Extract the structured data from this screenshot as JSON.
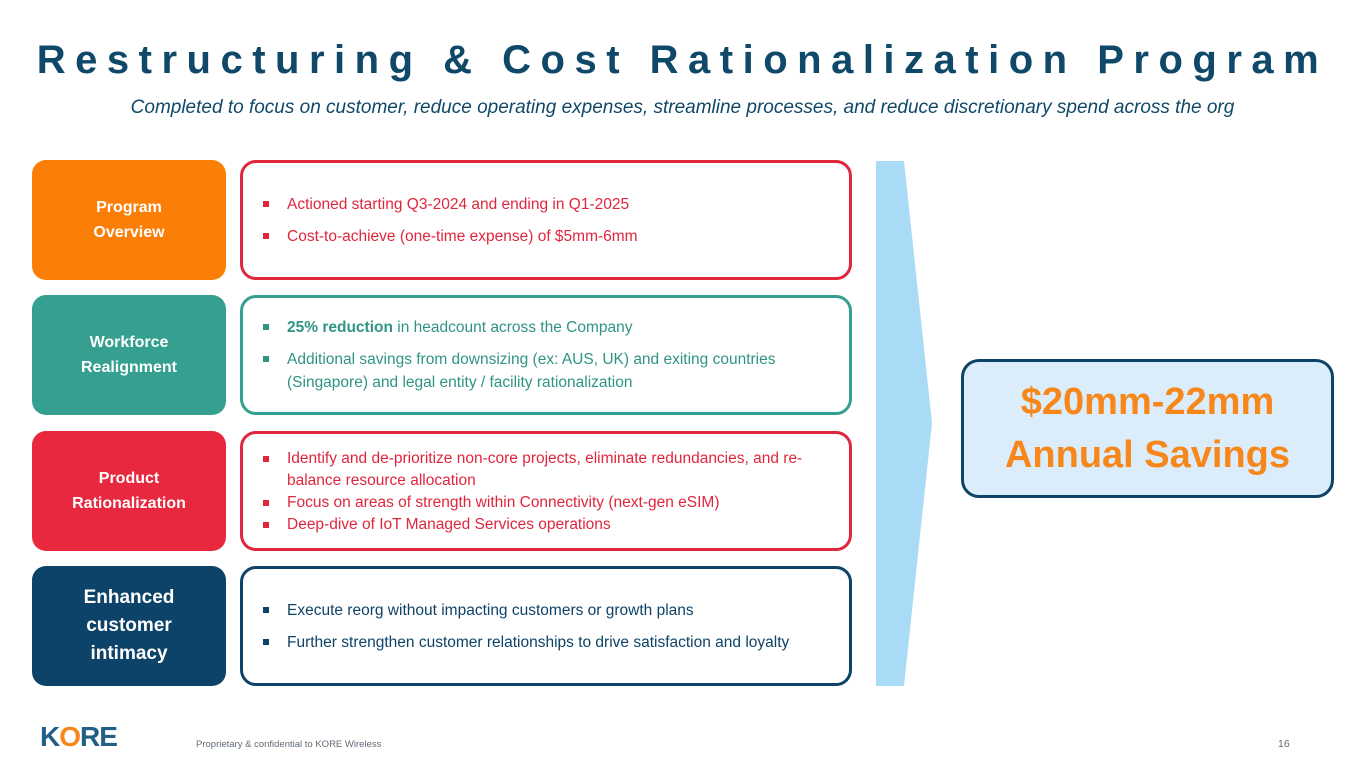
{
  "title": "Restructuring & Cost Rationalization Program",
  "subtitle": "Completed to focus on customer, reduce operating expenses, streamline processes, and reduce discretionary spend across the org",
  "rows": [
    {
      "label": [
        "Program",
        "Overview"
      ],
      "color": "#fb7e07",
      "border_color": "#e0263c",
      "bullets": [
        "Actioned starting Q3-2024 and ending in Q1-2025",
        "Cost-to-achieve (one-time expense) of $5mm-6mm"
      ]
    },
    {
      "label": [
        "Workforce",
        "Realignment"
      ],
      "color": "#35a08f",
      "border_color": "#35a08f",
      "bullets": [
        {
          "bold": "25% reduction",
          "rest": " in headcount across the Company"
        },
        "Additional savings from downsizing (ex: AUS, UK) and exiting countries (Singapore) and legal entity / facility rationalization"
      ]
    },
    {
      "label": [
        "Product",
        "Rationalization"
      ],
      "color": "#e8283e",
      "border_color": "#e0263c",
      "bullets": [
        "Identify and de-prioritize non-core projects, eliminate redundancies, and re-balance resource allocation",
        "Focus on areas of strength within Connectivity (next-gen eSIM)",
        "Deep-dive of IoT Managed Services operations"
      ]
    },
    {
      "label": [
        "Enhanced",
        "customer",
        "intimacy"
      ],
      "color": "#0d4368",
      "border_color": "#0d4368",
      "bullets": [
        "Execute reorg without impacting customers or growth plans",
        "Further strengthen customer relationships to drive satisfaction and loyalty"
      ]
    }
  ],
  "savings": {
    "line1": "$20mm-22mm",
    "line2": "Annual Savings",
    "text_color": "#f7871a",
    "bg_color": "#dbedfa"
  },
  "logo": {
    "text_k": "K",
    "text_o": "O",
    "text_re": "RE"
  },
  "footer": "Proprietary & confidential to KORE Wireless",
  "page_number": "16"
}
